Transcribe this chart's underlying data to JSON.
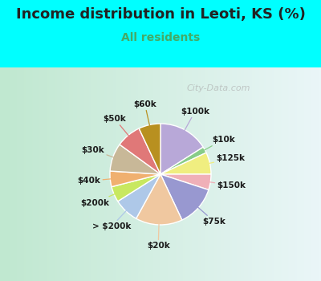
{
  "title": "Income distribution in Leoti, KS (%)",
  "subtitle": "All residents",
  "background_color": "#00FFFF",
  "chart_bg_left": "#c8e8d0",
  "chart_bg_right": "#e8f4f8",
  "labels": [
    "$100k",
    "$10k",
    "$125k",
    "$150k",
    "$75k",
    "$20k",
    "> $200k",
    "$200k",
    "$40k",
    "$30k",
    "$50k",
    "$60k"
  ],
  "values": [
    16,
    2,
    7,
    5,
    13,
    15,
    8,
    5,
    5,
    9,
    8,
    7
  ],
  "colors": [
    "#b8a8d8",
    "#88cc88",
    "#f0ee80",
    "#f0b0b8",
    "#9898d0",
    "#f0c8a0",
    "#aec8e8",
    "#c8e860",
    "#f0b070",
    "#c8b898",
    "#e07878",
    "#b89020"
  ],
  "watermark": "City-Data.com",
  "title_color": "#222222",
  "subtitle_color": "#44aa66",
  "label_fontsize": 7.5,
  "title_fontsize": 13,
  "subtitle_fontsize": 10
}
